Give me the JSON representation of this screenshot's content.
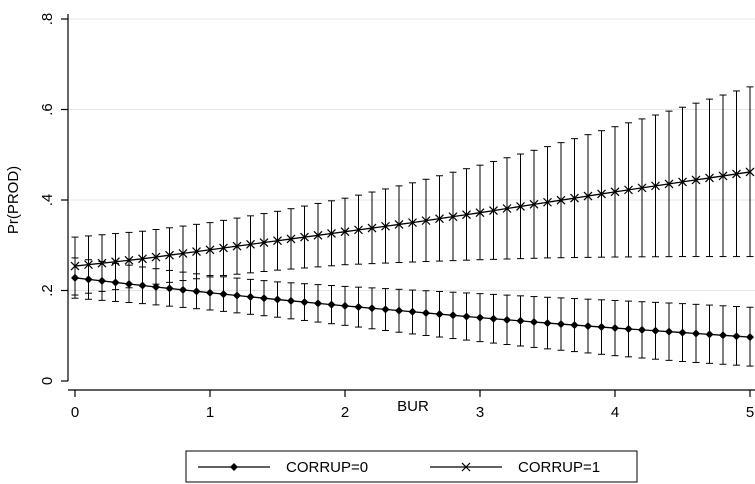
{
  "chart_data": {
    "type": "line",
    "xlabel": "BUR",
    "ylabel": "Pr(PROD)",
    "xlim": [
      0,
      5
    ],
    "ylim": [
      0,
      0.8
    ],
    "x_ticks": [
      0,
      1,
      2,
      3,
      4,
      5
    ],
    "x_tick_labels": [
      "0",
      "1",
      "2",
      "3",
      "4",
      "5"
    ],
    "y_ticks": [
      0,
      0.2,
      0.4,
      0.6,
      0.8
    ],
    "y_tick_labels": [
      "0",
      ".2",
      ".4",
      ".6",
      ".8"
    ],
    "grid": true,
    "legend_position": "bottom",
    "series": [
      {
        "name": "CORRUP=0",
        "marker": "diamond",
        "color": "#000000",
        "x": [
          0,
          0.5,
          1,
          1.5,
          2,
          2.5,
          3,
          3.5,
          4,
          4.5,
          5
        ],
        "y": [
          0.228,
          0.211,
          0.195,
          0.18,
          0.166,
          0.153,
          0.14,
          0.128,
          0.117,
          0.107,
          0.097
        ],
        "ci_lower": [
          0.183,
          0.171,
          0.157,
          0.141,
          0.123,
          0.104,
          0.087,
          0.071,
          0.056,
          0.043,
          0.033
        ],
        "ci_upper": [
          0.272,
          0.252,
          0.233,
          0.219,
          0.209,
          0.201,
          0.193,
          0.185,
          0.178,
          0.171,
          0.163
        ]
      },
      {
        "name": "CORRUP=1",
        "marker": "x",
        "color": "#000000",
        "x": [
          0,
          0.5,
          1,
          1.5,
          2,
          2.5,
          3,
          3.5,
          4,
          4.5,
          5
        ],
        "y": [
          0.254,
          0.27,
          0.29,
          0.31,
          0.33,
          0.35,
          0.372,
          0.395,
          0.418,
          0.44,
          0.462
        ],
        "ci_lower": [
          0.19,
          0.21,
          0.23,
          0.245,
          0.257,
          0.263,
          0.268,
          0.272,
          0.274,
          0.275,
          0.275
        ],
        "ci_upper": [
          0.318,
          0.331,
          0.35,
          0.375,
          0.404,
          0.438,
          0.477,
          0.518,
          0.562,
          0.605,
          0.65
        ]
      }
    ]
  }
}
